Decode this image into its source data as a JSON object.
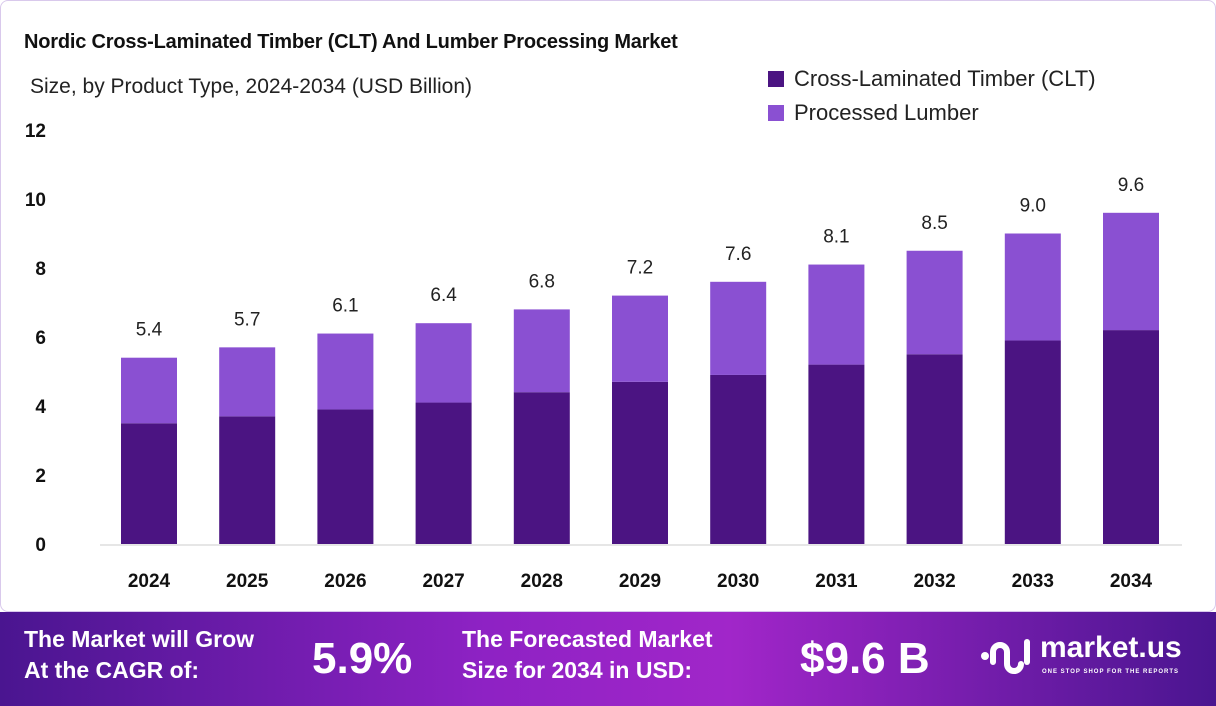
{
  "chart_data": {
    "type": "bar",
    "stacked": true,
    "title": "Nordic Cross-Laminated Timber (CLT) And Lumber Processing Market",
    "subtitle": "Size, by Product Type, 2024-2034 (USD Billion)",
    "categories": [
      "2024",
      "2025",
      "2026",
      "2027",
      "2028",
      "2029",
      "2030",
      "2031",
      "2032",
      "2033",
      "2034"
    ],
    "series": [
      {
        "name": "Cross-Laminated Timber (CLT)",
        "color": "#4b1482",
        "values": [
          3.5,
          3.7,
          3.9,
          4.1,
          4.4,
          4.7,
          4.9,
          5.2,
          5.5,
          5.9,
          6.2
        ]
      },
      {
        "name": "Processed Lumber",
        "color": "#8a50d2",
        "values": [
          1.9,
          2.0,
          2.2,
          2.3,
          2.4,
          2.5,
          2.7,
          2.9,
          3.0,
          3.1,
          3.4
        ]
      }
    ],
    "totals": [
      "5.4",
      "5.7",
      "6.1",
      "6.4",
      "6.8",
      "7.2",
      "7.6",
      "8.1",
      "8.5",
      "9.0",
      "9.6"
    ],
    "ylim": [
      0,
      12
    ],
    "yticks": [
      "0",
      "2",
      "4",
      "6",
      "8",
      "10",
      "12"
    ],
    "grid": false,
    "legend_position": "top-right"
  },
  "banner": {
    "cagr_label_1": "The Market will Grow",
    "cagr_label_2": "At the CAGR of:",
    "cagr_value": "5.9%",
    "forecast_label_1": "The Forecasted Market",
    "forecast_label_2": "Size for 2034 in USD:",
    "forecast_value": "$9.6 B",
    "logo_name": "market.us",
    "logo_tagline": "ONE STOP SHOP FOR THE REPORTS"
  }
}
